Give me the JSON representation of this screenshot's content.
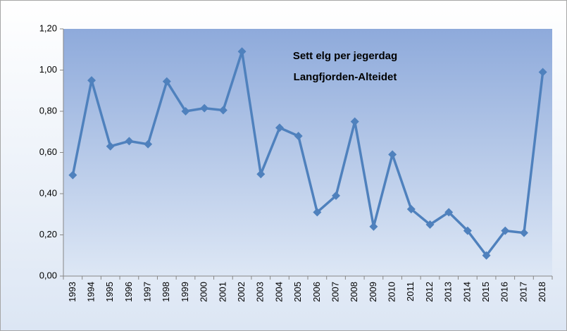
{
  "chart_data": {
    "type": "line",
    "title": "Sett elg per jegerdag",
    "subtitle": "Langfjorden-Alteidet",
    "categories": [
      "1993",
      "1994",
      "1995",
      "1996",
      "1997",
      "1998",
      "1999",
      "2000",
      "2001",
      "2002",
      "2003",
      "2004",
      "2005",
      "2006",
      "2007",
      "2008",
      "2009",
      "2010",
      "2011",
      "2012",
      "2013",
      "2014",
      "2015",
      "2016",
      "2017",
      "2018"
    ],
    "series": [
      {
        "name": "Sett elg per jegerdag",
        "color": "#4f81bd",
        "values": [
          0.49,
          0.95,
          0.63,
          0.655,
          0.64,
          0.945,
          0.8,
          0.815,
          0.805,
          1.09,
          0.495,
          0.72,
          0.68,
          0.31,
          0.39,
          0.75,
          0.24,
          0.59,
          0.325,
          0.25,
          0.31,
          0.22,
          0.1,
          0.22,
          0.21,
          0.99
        ]
      }
    ],
    "ylim": [
      0,
      1.2
    ],
    "yticks": [
      {
        "value": 0,
        "label": "0,00"
      },
      {
        "value": 0.2,
        "label": "0,20"
      },
      {
        "value": 0.4,
        "label": "0,40"
      },
      {
        "value": 0.6,
        "label": "0,60"
      },
      {
        "value": 0.8,
        "label": "0,80"
      },
      {
        "value": 1.0,
        "label": "1,00"
      },
      {
        "value": 1.2,
        "label": "1,20"
      }
    ]
  }
}
